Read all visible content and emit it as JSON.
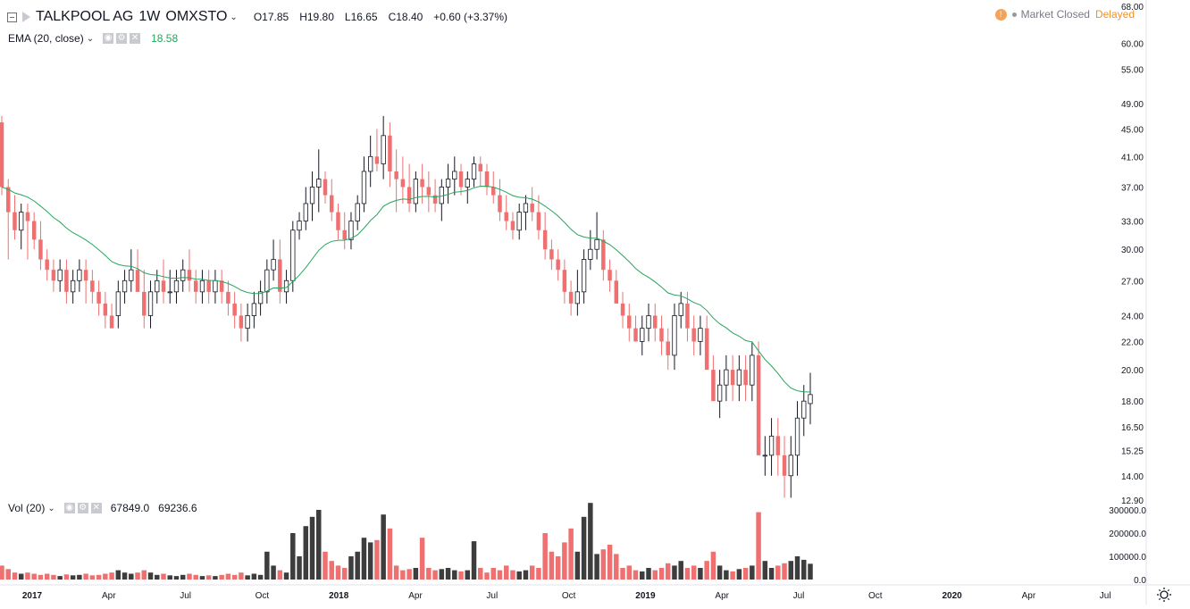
{
  "header": {
    "symbol": "TALKPOOL AG",
    "interval": "1W",
    "exchange": "OMXSTO",
    "open": "O17.85",
    "high": "H19.80",
    "low": "L16.65",
    "close": "C18.40",
    "change": "+0.60 (+3.37%)"
  },
  "indicator": {
    "label": "EMA (20, close)",
    "value": "18.58"
  },
  "volume_indicator": {
    "label": "Vol (20)",
    "value1": "67849.0",
    "value2": "69236.6"
  },
  "status": {
    "market": "Market Closed",
    "delayed": "Delayed",
    "info_icon": "!"
  },
  "colors": {
    "up_fill": "#ffffff",
    "up_stroke": "#131722",
    "down": "#ef7070",
    "ema": "#26a65b",
    "vol_up": "#3d3d3d",
    "vol_down": "#ef7070"
  },
  "icons": [
    "collapse-box-icon",
    "flag-icon",
    "chevron-down-icon",
    "eye-icon",
    "gear-icon",
    "close-icon",
    "info-icon",
    "settings-sun-icon"
  ],
  "chart_data": {
    "type": "candlestick",
    "price_axis": {
      "labels": [
        "68.00",
        "60.00",
        "55.00",
        "49.00",
        "45.00",
        "41.00",
        "37.00",
        "33.00",
        "30.00",
        "27.00",
        "24.00",
        "22.00",
        "20.00",
        "18.00",
        "16.50",
        "15.25",
        "14.00",
        "12.90"
      ],
      "scale": "log",
      "range": [
        12.9,
        68.0
      ]
    },
    "volume_axis": {
      "labels": [
        "300000.0",
        "200000.0",
        "100000.0",
        "0.0"
      ],
      "range": [
        0,
        300000
      ]
    },
    "time_axis": {
      "labels": [
        "2017",
        "Apr",
        "Jul",
        "Oct",
        "2018",
        "Apr",
        "Jul",
        "Oct",
        "2019",
        "Apr",
        "Jul",
        "Oct",
        "2020",
        "Apr",
        "Jul"
      ]
    },
    "candles": [
      [
        46,
        47,
        36,
        37,
        60000
      ],
      [
        37,
        38,
        29,
        34,
        45000
      ],
      [
        34,
        36,
        31,
        32,
        30000
      ],
      [
        32,
        35,
        30,
        34,
        25000
      ],
      [
        34,
        35,
        29,
        33,
        30000
      ],
      [
        33,
        34,
        30,
        31,
        25000
      ],
      [
        31,
        33,
        28,
        29,
        20000
      ],
      [
        29,
        30,
        27,
        28,
        25000
      ],
      [
        28,
        29,
        26,
        27,
        20000
      ],
      [
        27,
        29,
        26,
        28,
        15000
      ],
      [
        28,
        29,
        25,
        26,
        22000
      ],
      [
        26,
        28,
        25,
        27,
        18000
      ],
      [
        27,
        29,
        26,
        28,
        20000
      ],
      [
        28,
        29,
        25,
        27,
        25000
      ],
      [
        27,
        28,
        25,
        26,
        18000
      ],
      [
        26,
        27,
        24,
        25,
        20000
      ],
      [
        25,
        26,
        23,
        24,
        25000
      ],
      [
        24,
        25,
        23,
        23,
        30000
      ],
      [
        24,
        27,
        23,
        26,
        40000
      ],
      [
        26,
        28,
        25,
        27,
        30000
      ],
      [
        27,
        30,
        26,
        28,
        25000
      ],
      [
        28,
        30,
        26,
        26,
        30000
      ],
      [
        26,
        28,
        23,
        24,
        40000
      ],
      [
        24,
        27,
        23,
        26,
        30000
      ],
      [
        26,
        28,
        25,
        27,
        20000
      ],
      [
        27,
        29,
        25,
        26,
        25000
      ],
      [
        26,
        28,
        25,
        26,
        18000
      ],
      [
        26,
        28,
        25,
        27,
        15000
      ],
      [
        27,
        29,
        26,
        28,
        20000
      ],
      [
        28,
        30,
        26,
        27,
        25000
      ],
      [
        27,
        28,
        25,
        26,
        20000
      ],
      [
        26,
        28,
        25,
        27,
        15000
      ],
      [
        27,
        28,
        25,
        26,
        18000
      ],
      [
        26,
        28,
        25,
        27,
        15000
      ],
      [
        27,
        28,
        25,
        26,
        20000
      ],
      [
        26,
        27,
        24,
        25,
        25000
      ],
      [
        25,
        26,
        23,
        24,
        20000
      ],
      [
        24,
        25,
        22,
        23,
        30000
      ],
      [
        23,
        25,
        22,
        24,
        18000
      ],
      [
        24,
        26,
        23,
        25,
        25000
      ],
      [
        25,
        27,
        24,
        26,
        20000
      ],
      [
        26,
        29,
        25,
        28,
        120000
      ],
      [
        28,
        31,
        27,
        29,
        60000
      ],
      [
        29,
        31,
        25,
        26,
        40000
      ],
      [
        26,
        28,
        25,
        27,
        30000
      ],
      [
        27,
        33,
        26,
        32,
        200000
      ],
      [
        32,
        34,
        31,
        33,
        100000
      ],
      [
        33,
        37,
        32,
        35,
        230000
      ],
      [
        35,
        39,
        33,
        37,
        270000
      ],
      [
        37,
        42,
        34,
        38,
        300000
      ],
      [
        38,
        39,
        35,
        36,
        120000
      ],
      [
        36,
        38,
        33,
        34,
        80000
      ],
      [
        34,
        35,
        31,
        32,
        60000
      ],
      [
        32,
        34,
        30,
        31,
        50000
      ],
      [
        31,
        34,
        30,
        33,
        100000
      ],
      [
        33,
        36,
        32,
        35,
        120000
      ],
      [
        35,
        41,
        34,
        39,
        180000
      ],
      [
        39,
        44,
        37,
        41,
        160000
      ],
      [
        41,
        45,
        39,
        40,
        170000
      ],
      [
        40,
        47,
        38,
        44,
        280000
      ],
      [
        44,
        46,
        37,
        39,
        220000
      ],
      [
        39,
        42,
        34,
        38,
        60000
      ],
      [
        38,
        41,
        35,
        37,
        40000
      ],
      [
        37,
        40,
        34,
        35,
        45000
      ],
      [
        35,
        39,
        34,
        38,
        50000
      ],
      [
        38,
        40,
        35,
        37,
        180000
      ],
      [
        37,
        39,
        34,
        36,
        50000
      ],
      [
        36,
        38,
        34,
        35,
        40000
      ],
      [
        35,
        38,
        33,
        37,
        45000
      ],
      [
        37,
        40,
        35,
        38,
        50000
      ],
      [
        38,
        41,
        36,
        39,
        40000
      ],
      [
        39,
        40,
        36,
        37,
        35000
      ],
      [
        37,
        39,
        35,
        38,
        40000
      ],
      [
        38,
        41,
        37,
        40,
        165000
      ],
      [
        40,
        41,
        37,
        39,
        50000
      ],
      [
        39,
        40,
        36,
        37,
        30000
      ],
      [
        37,
        39,
        35,
        36,
        50000
      ],
      [
        36,
        38,
        33,
        34,
        40000
      ],
      [
        34,
        36,
        32,
        33,
        60000
      ],
      [
        33,
        34,
        31,
        32,
        40000
      ],
      [
        32,
        35,
        31,
        34,
        35000
      ],
      [
        34,
        36,
        32,
        35,
        40000
      ],
      [
        35,
        37,
        33,
        34,
        60000
      ],
      [
        34,
        36,
        31,
        32,
        50000
      ],
      [
        32,
        34,
        29,
        30,
        200000
      ],
      [
        30,
        31,
        28,
        29,
        120000
      ],
      [
        29,
        30,
        27,
        28,
        100000
      ],
      [
        28,
        29,
        25,
        26,
        160000
      ],
      [
        26,
        27,
        24,
        25,
        220000
      ],
      [
        25,
        28,
        24,
        26,
        120000
      ],
      [
        26,
        30,
        25,
        29,
        270000
      ],
      [
        29,
        32,
        28,
        30,
        330000
      ],
      [
        30,
        34,
        29,
        31,
        110000
      ],
      [
        31,
        32,
        27,
        28,
        130000
      ],
      [
        28,
        29,
        26,
        27,
        150000
      ],
      [
        27,
        28,
        25,
        25,
        110000
      ],
      [
        25,
        26,
        23,
        24,
        50000
      ],
      [
        24,
        25,
        22,
        23,
        60000
      ],
      [
        23,
        24,
        22,
        22,
        40000
      ],
      [
        22,
        24,
        21,
        23,
        35000
      ],
      [
        23,
        25,
        22,
        24,
        50000
      ],
      [
        24,
        25,
        22,
        23,
        40000
      ],
      [
        23,
        24,
        21,
        22,
        50000
      ],
      [
        22,
        23,
        20,
        21,
        70000
      ],
      [
        21,
        25,
        20,
        24,
        60000
      ],
      [
        24,
        26,
        23,
        25,
        80000
      ],
      [
        25,
        26,
        22,
        23,
        50000
      ],
      [
        23,
        24,
        21,
        22,
        60000
      ],
      [
        22,
        24,
        21,
        23,
        50000
      ],
      [
        23,
        24,
        20,
        20,
        80000
      ],
      [
        20,
        21,
        18,
        18,
        120000
      ],
      [
        18,
        20,
        17,
        19,
        60000
      ],
      [
        19,
        21,
        18,
        20,
        40000
      ],
      [
        20,
        21,
        18,
        19,
        35000
      ],
      [
        19,
        21,
        18,
        20,
        45000
      ],
      [
        20,
        21,
        18,
        19,
        50000
      ],
      [
        19,
        22,
        18,
        21,
        60000
      ],
      [
        21,
        22,
        15,
        15,
        290000
      ],
      [
        15,
        16,
        14,
        15,
        80000
      ],
      [
        15,
        17,
        14,
        16,
        50000
      ],
      [
        16,
        17,
        14,
        15,
        60000
      ],
      [
        15,
        16,
        13,
        14,
        70000
      ],
      [
        14,
        16,
        13,
        15,
        80000
      ],
      [
        15,
        18,
        14,
        17,
        100000
      ],
      [
        17,
        19,
        16,
        18,
        85000
      ],
      [
        17.85,
        19.8,
        16.65,
        18.4,
        67849
      ]
    ]
  }
}
